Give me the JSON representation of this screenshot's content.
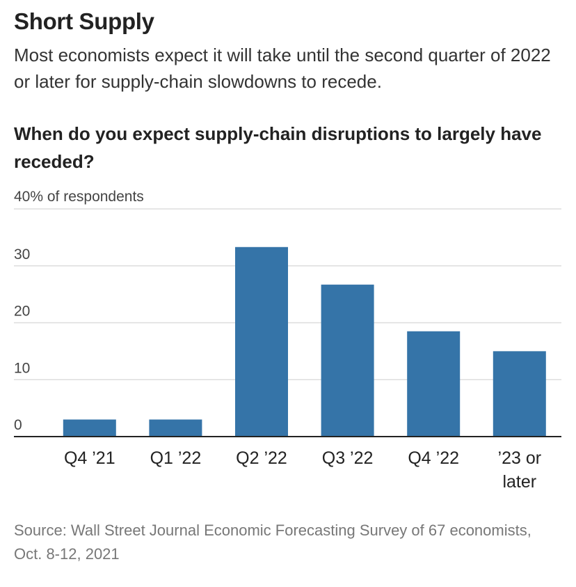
{
  "headline": "Short Supply",
  "dek": "Most economists expect it will take until the second quarter of 2022 or later for supply-chain slowdowns to recede.",
  "question": "When do you expect supply-chain disruptions to largely have receded?",
  "source": "Source: Wall Street Journal Economic Forecasting Survey of 67 economists, Oct. 8-12, 2021",
  "colors": {
    "bar": "#3574a8",
    "grid": "#dddddd",
    "axis": "#222222"
  },
  "chart_data": {
    "type": "bar",
    "title": "When do you expect supply-chain disruptions to largely have receded?",
    "ylabel": "40% of respondents",
    "ylim": [
      0,
      40
    ],
    "yticks": [
      {
        "value": 40,
        "label": "40% of respondents"
      },
      {
        "value": 30,
        "label": "30"
      },
      {
        "value": 20,
        "label": "20"
      },
      {
        "value": 10,
        "label": "10"
      },
      {
        "value": 0,
        "label": "0"
      }
    ],
    "categories": [
      [
        "Q4 ’21"
      ],
      [
        "Q1 ’22"
      ],
      [
        "Q2 ’22"
      ],
      [
        "Q3 ’22"
      ],
      [
        "Q4 ’22"
      ],
      [
        "’23 or",
        "later"
      ]
    ],
    "values": [
      3.0,
      3.0,
      33.3,
      26.7,
      18.5,
      15.0
    ]
  }
}
